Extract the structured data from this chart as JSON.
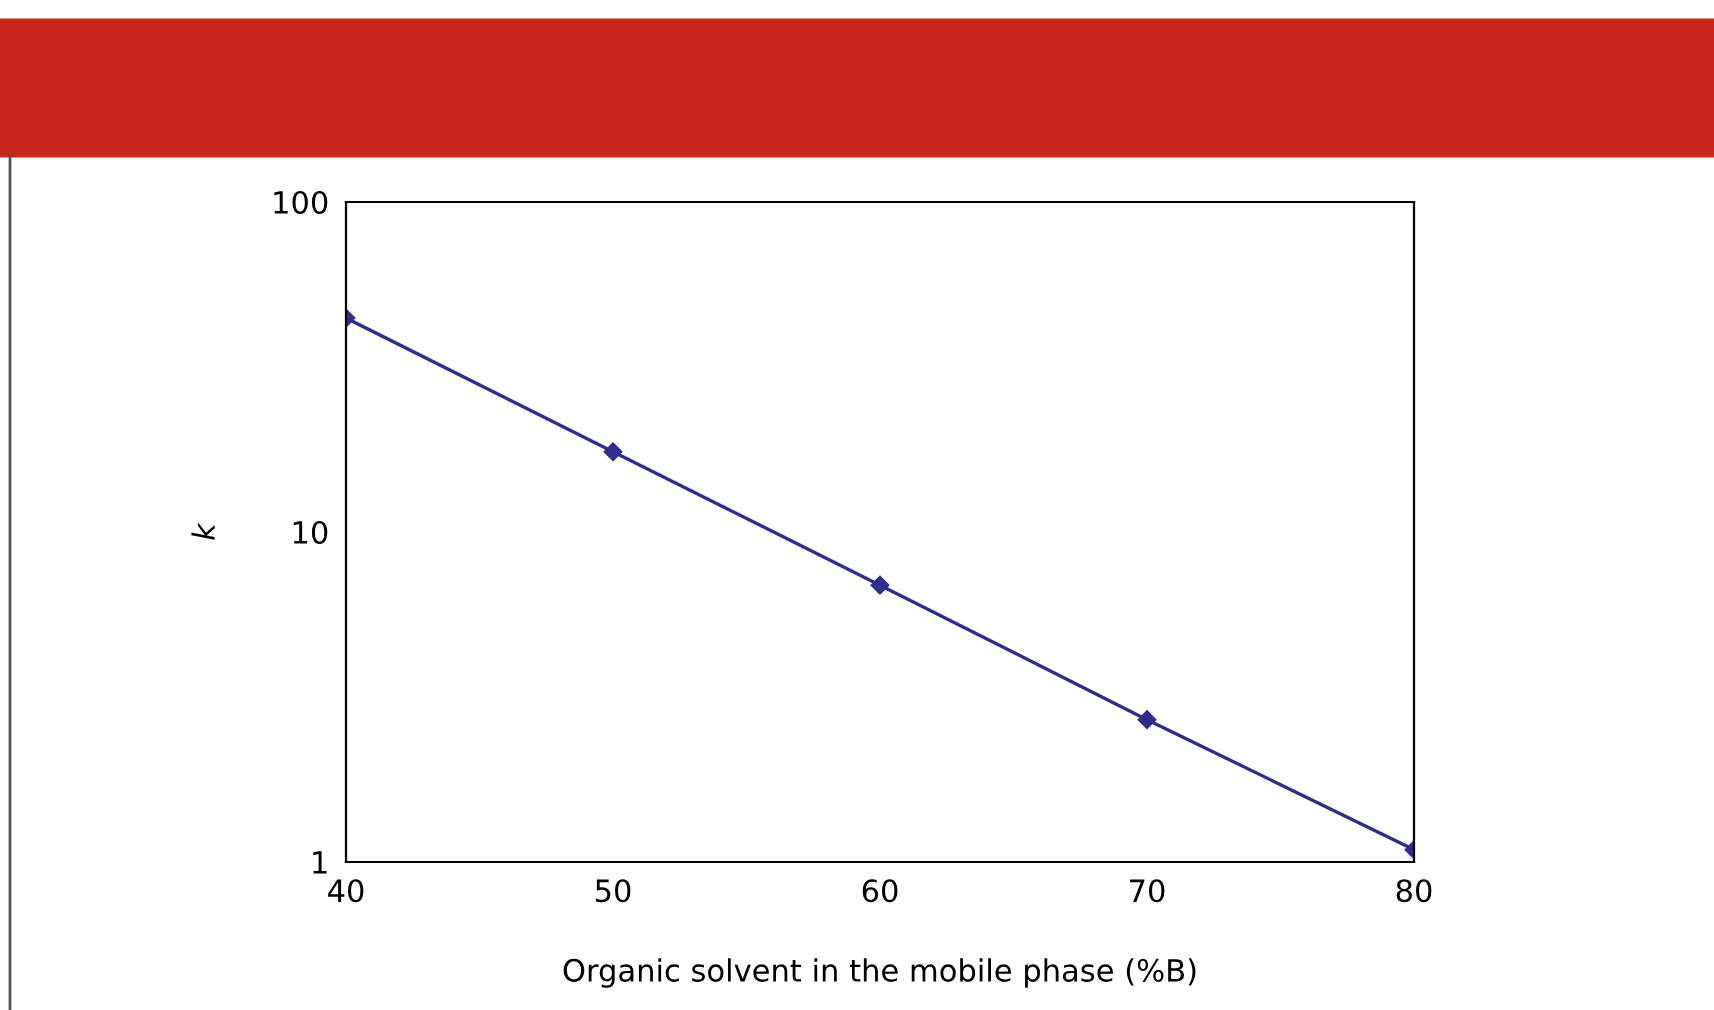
{
  "chart_data": {
    "type": "line",
    "xlabel": "Organic solvent in the mobile phase (%B)",
    "ylabel": "k",
    "x": [
      40,
      50,
      60,
      70,
      80
    ],
    "series": [
      {
        "color": "#2e2e8c",
        "values": [
          44.5,
          17.5,
          6.9,
          2.7,
          1.09
        ]
      }
    ],
    "xlim": [
      40,
      80
    ],
    "xticks": [
      40,
      50,
      60,
      70,
      80
    ],
    "ylim": [
      1,
      100
    ],
    "yticks": [
      1,
      10,
      100
    ],
    "log": "y",
    "grid": false,
    "legend": false,
    "marker": "diamond",
    "line_style": "solid"
  }
}
